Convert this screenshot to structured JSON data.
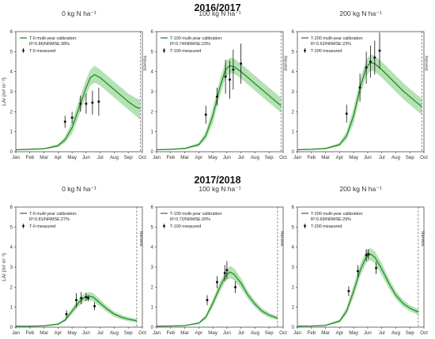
{
  "season_titles": [
    "2016/2017",
    "2017/2018"
  ],
  "harvest_label": "Harvest",
  "colors": {
    "model_line": "#2a8a2a",
    "band": "#9bd89b",
    "measured": "#111111",
    "harvest_line": "#555555"
  },
  "chart_data": [
    {
      "type": "line",
      "season": "2016/2017",
      "title": "0 kg N ha⁻¹",
      "ylabel": "LAI (m² m⁻²)",
      "xticks": [
        "Jan",
        "Feb",
        "Mar",
        "Apr",
        "May",
        "Jun",
        "Jul",
        "Aug",
        "Sep",
        "Oct"
      ],
      "ylim": [
        0,
        6
      ],
      "yticks": [
        "0",
        "1",
        "2",
        "3",
        "4",
        "5",
        "6"
      ],
      "harvest_month": 8.85,
      "legend": {
        "model": "T-0 multi-year calibration:",
        "model_stats": "R²:0.86/NRMSE:38%",
        "measured": "T-0 measured"
      },
      "model": {
        "x": [
          0,
          1,
          2,
          3,
          3.5,
          4,
          4.5,
          5,
          5.3,
          5.6,
          6,
          6.5,
          7,
          7.5,
          8,
          8.5,
          8.85
        ],
        "y": [
          0.1,
          0.12,
          0.15,
          0.3,
          0.6,
          1.2,
          2.2,
          3.2,
          3.7,
          3.85,
          3.7,
          3.4,
          3.1,
          2.8,
          2.5,
          2.25,
          2.15
        ]
      },
      "band": {
        "x": [
          0,
          1,
          2,
          3,
          3.5,
          4,
          4.5,
          5,
          5.3,
          5.6,
          6,
          6.5,
          7,
          7.5,
          8,
          8.5,
          8.85
        ],
        "lower": [
          0.08,
          0.1,
          0.12,
          0.22,
          0.45,
          0.9,
          1.8,
          2.8,
          3.3,
          3.45,
          3.3,
          3.0,
          2.7,
          2.4,
          2.1,
          1.8,
          1.6
        ],
        "upper": [
          0.12,
          0.14,
          0.18,
          0.38,
          0.75,
          1.5,
          2.6,
          3.6,
          4.1,
          4.3,
          4.1,
          3.8,
          3.5,
          3.2,
          2.9,
          2.7,
          2.6
        ]
      },
      "measured": [
        {
          "x": 3.5,
          "y": 1.5,
          "err": 0.3
        },
        {
          "x": 4.0,
          "y": 1.7,
          "err": 0.3
        },
        {
          "x": 4.6,
          "y": 2.4,
          "err": 0.4
        },
        {
          "x": 5.0,
          "y": 2.4,
          "err": 0.5
        },
        {
          "x": 5.45,
          "y": 2.45,
          "err": 0.6
        },
        {
          "x": 5.9,
          "y": 2.5,
          "err": 0.7
        }
      ]
    },
    {
      "type": "line",
      "season": "2016/2017",
      "title": "100 kg N ha⁻¹",
      "ylabel": "",
      "xticks": [
        "Jan",
        "Feb",
        "Mar",
        "Apr",
        "May",
        "Jun",
        "Jul",
        "Aug",
        "Sep",
        "Oct"
      ],
      "ylim": [
        0,
        6
      ],
      "yticks": [
        "0",
        "1",
        "2",
        "3",
        "4",
        "5",
        "6"
      ],
      "harvest_month": 8.85,
      "legend": {
        "model": "T-100 multi-year calibration:",
        "model_stats": "R²:0.74/NRMSE:23%",
        "measured": "T-100 measured"
      },
      "model": {
        "x": [
          0,
          1,
          2,
          3,
          3.5,
          4,
          4.5,
          4.9,
          5.2,
          5.5,
          6,
          6.5,
          7,
          7.5,
          8,
          8.5,
          8.85
        ],
        "y": [
          0.1,
          0.12,
          0.16,
          0.35,
          0.8,
          1.8,
          3.2,
          4.1,
          4.3,
          4.25,
          4.0,
          3.7,
          3.4,
          3.1,
          2.8,
          2.5,
          2.3
        ]
      },
      "band": {
        "x": [
          0,
          1,
          2,
          3,
          3.5,
          4,
          4.5,
          4.9,
          5.2,
          5.5,
          6,
          6.5,
          7,
          7.5,
          8,
          8.5,
          8.85
        ],
        "lower": [
          0.08,
          0.1,
          0.13,
          0.27,
          0.6,
          1.4,
          2.8,
          3.7,
          3.9,
          3.9,
          3.65,
          3.35,
          3.05,
          2.75,
          2.45,
          2.15,
          1.95
        ],
        "upper": [
          0.12,
          0.14,
          0.2,
          0.45,
          1.0,
          2.2,
          3.6,
          4.5,
          4.7,
          4.65,
          4.4,
          4.1,
          3.8,
          3.5,
          3.2,
          2.9,
          2.7
        ]
      },
      "measured": [
        {
          "x": 3.5,
          "y": 1.85,
          "err": 0.45
        },
        {
          "x": 4.3,
          "y": 2.75,
          "err": 0.45
        },
        {
          "x": 4.9,
          "y": 3.75,
          "err": 0.85
        },
        {
          "x": 5.2,
          "y": 3.6,
          "err": 0.95
        },
        {
          "x": 5.45,
          "y": 4.1,
          "err": 1.0
        },
        {
          "x": 6.0,
          "y": 4.4,
          "err": 1.0
        }
      ]
    },
    {
      "type": "line",
      "season": "2016/2017",
      "title": "200 kg N ha⁻¹",
      "ylabel": "",
      "xticks": [
        "Jan",
        "Feb",
        "Mar",
        "Apr",
        "May",
        "Jun",
        "Jul",
        "Aug",
        "Sep",
        "Oct"
      ],
      "ylim": [
        0,
        6
      ],
      "yticks": [
        "0",
        "1",
        "2",
        "3",
        "4",
        "5",
        "6"
      ],
      "harvest_month": 8.85,
      "legend": {
        "model": "T-200 multi-year calibration:",
        "model_stats": "R²:0.62/NRMSE:23%",
        "measured": "T-200 measured"
      },
      "model": {
        "x": [
          0,
          1,
          2,
          3,
          3.5,
          4,
          4.5,
          4.9,
          5.2,
          5.5,
          6,
          6.5,
          7,
          7.5,
          8,
          8.5,
          8.85
        ],
        "y": [
          0.1,
          0.12,
          0.16,
          0.35,
          0.8,
          1.8,
          3.3,
          4.2,
          4.45,
          4.4,
          4.1,
          3.75,
          3.4,
          3.05,
          2.75,
          2.45,
          2.25
        ]
      },
      "band": {
        "x": [
          0,
          1,
          2,
          3,
          3.5,
          4,
          4.5,
          4.9,
          5.2,
          5.5,
          6,
          6.5,
          7,
          7.5,
          8,
          8.5,
          8.85
        ],
        "lower": [
          0.08,
          0.1,
          0.13,
          0.27,
          0.6,
          1.4,
          2.9,
          3.8,
          4.05,
          4.0,
          3.7,
          3.35,
          3.0,
          2.65,
          2.35,
          2.05,
          1.85
        ],
        "upper": [
          0.12,
          0.14,
          0.2,
          0.45,
          1.0,
          2.2,
          3.7,
          4.6,
          4.85,
          4.8,
          4.5,
          4.15,
          3.8,
          3.45,
          3.15,
          2.85,
          2.65
        ]
      },
      "measured": [
        {
          "x": 3.5,
          "y": 1.9,
          "err": 0.45
        },
        {
          "x": 4.45,
          "y": 3.2,
          "err": 0.7
        },
        {
          "x": 4.9,
          "y": 4.2,
          "err": 0.8
        },
        {
          "x": 5.2,
          "y": 4.5,
          "err": 0.8
        },
        {
          "x": 5.5,
          "y": 4.7,
          "err": 0.85
        },
        {
          "x": 5.85,
          "y": 5.05,
          "err": 0.9
        }
      ]
    },
    {
      "type": "line",
      "season": "2017/2018",
      "title": "0 kg N ha⁻¹",
      "ylabel": "LAI (m² m⁻²)",
      "xticks": [
        "Jan",
        "Feb",
        "Mar",
        "Apr",
        "May",
        "Jun",
        "Jul",
        "Aug",
        "Sep",
        "Oct"
      ],
      "ylim": [
        0,
        6
      ],
      "yticks": [
        "0",
        "1",
        "2",
        "3",
        "4",
        "5",
        "6"
      ],
      "harvest_month": 8.6,
      "legend": {
        "model": "T-0 multi-year calibration:",
        "model_stats": "R²:0.81/NRMSE:27%",
        "measured": "T-0 measured"
      },
      "model": {
        "x": [
          0,
          1,
          2,
          3,
          3.5,
          4,
          4.5,
          4.9,
          5.2,
          5.5,
          6,
          6.5,
          7,
          7.5,
          8,
          8.6
        ],
        "y": [
          0.05,
          0.05,
          0.07,
          0.15,
          0.35,
          0.8,
          1.25,
          1.5,
          1.55,
          1.5,
          1.2,
          0.9,
          0.65,
          0.5,
          0.4,
          0.32
        ]
      },
      "band": {
        "x": [
          0,
          1,
          2,
          3,
          3.5,
          4,
          4.5,
          4.9,
          5.2,
          5.5,
          6,
          6.5,
          7,
          7.5,
          8,
          8.6
        ],
        "lower": [
          0.03,
          0.03,
          0.05,
          0.11,
          0.27,
          0.65,
          1.05,
          1.3,
          1.35,
          1.3,
          1.02,
          0.75,
          0.52,
          0.38,
          0.3,
          0.23
        ],
        "upper": [
          0.07,
          0.07,
          0.09,
          0.19,
          0.45,
          0.95,
          1.45,
          1.7,
          1.75,
          1.7,
          1.38,
          1.05,
          0.78,
          0.62,
          0.5,
          0.41
        ]
      },
      "measured": [
        {
          "x": 3.6,
          "y": 0.65,
          "err": 0.2
        },
        {
          "x": 4.3,
          "y": 1.35,
          "err": 0.35
        },
        {
          "x": 4.65,
          "y": 1.45,
          "err": 0.3
        },
        {
          "x": 5.0,
          "y": 1.5,
          "err": 0.2
        },
        {
          "x": 5.15,
          "y": 1.45,
          "err": 0.15
        },
        {
          "x": 5.6,
          "y": 1.05,
          "err": 0.2
        }
      ]
    },
    {
      "type": "line",
      "season": "2017/2018",
      "title": "100 kg N ha⁻¹",
      "ylabel": "",
      "xticks": [
        "Jan",
        "Feb",
        "Mar",
        "Apr",
        "May",
        "Jun",
        "Jul",
        "Aug",
        "Sep",
        "Oct"
      ],
      "ylim": [
        0,
        6
      ],
      "yticks": [
        "0",
        "1",
        "2",
        "3",
        "4",
        "5",
        "6"
      ],
      "harvest_month": 8.6,
      "legend": {
        "model": "T-100 multi-year calibration:",
        "model_stats": "R²:0.72/NRMSE:20%",
        "measured": "T-100 measured"
      },
      "model": {
        "x": [
          0,
          1,
          2,
          3,
          3.5,
          4,
          4.5,
          4.9,
          5.2,
          5.5,
          6,
          6.5,
          7,
          7.5,
          8,
          8.6
        ],
        "y": [
          0.05,
          0.06,
          0.08,
          0.2,
          0.5,
          1.2,
          2.0,
          2.55,
          2.75,
          2.65,
          2.2,
          1.6,
          1.15,
          0.8,
          0.6,
          0.45
        ]
      },
      "band": {
        "x": [
          0,
          1,
          2,
          3,
          3.5,
          4,
          4.5,
          4.9,
          5.2,
          5.5,
          6,
          6.5,
          7,
          7.5,
          8,
          8.6
        ],
        "lower": [
          0.03,
          0.04,
          0.06,
          0.15,
          0.4,
          1.0,
          1.75,
          2.3,
          2.45,
          2.35,
          1.95,
          1.4,
          0.98,
          0.66,
          0.48,
          0.35
        ],
        "upper": [
          0.07,
          0.08,
          0.1,
          0.25,
          0.6,
          1.4,
          2.25,
          2.8,
          3.05,
          2.95,
          2.45,
          1.8,
          1.32,
          0.94,
          0.72,
          0.55
        ]
      },
      "measured": [
        {
          "x": 3.6,
          "y": 1.35,
          "err": 0.25
        },
        {
          "x": 4.3,
          "y": 2.25,
          "err": 0.3
        },
        {
          "x": 4.85,
          "y": 2.7,
          "err": 0.4
        },
        {
          "x": 5.0,
          "y": 2.85,
          "err": 0.45
        },
        {
          "x": 5.6,
          "y": 2.0,
          "err": 0.3
        }
      ]
    },
    {
      "type": "line",
      "season": "2017/2018",
      "title": "200 kg N ha⁻¹",
      "ylabel": "",
      "xticks": [
        "Jan",
        "Feb",
        "Mar",
        "Apr",
        "May",
        "Jun",
        "Jul",
        "Aug",
        "Sep",
        "Oct"
      ],
      "ylim": [
        0,
        6
      ],
      "yticks": [
        "0",
        "1",
        "2",
        "3",
        "4",
        "5",
        "6"
      ],
      "harvest_month": 8.6,
      "legend": {
        "model": "T-200 multi-year calibration:",
        "model_stats": "R²:0.69/NRMSE:29%",
        "measured": "T-200 measured"
      },
      "model": {
        "x": [
          0,
          1,
          2,
          3,
          3.5,
          4,
          4.5,
          4.9,
          5.2,
          5.5,
          6,
          6.5,
          7,
          7.5,
          8,
          8.6
        ],
        "y": [
          0.05,
          0.06,
          0.09,
          0.3,
          0.8,
          1.8,
          2.9,
          3.5,
          3.65,
          3.5,
          2.9,
          2.2,
          1.6,
          1.2,
          0.95,
          0.75
        ]
      },
      "band": {
        "x": [
          0,
          1,
          2,
          3,
          3.5,
          4,
          4.5,
          4.9,
          5.2,
          5.5,
          6,
          6.5,
          7,
          7.5,
          8,
          8.6
        ],
        "lower": [
          0.03,
          0.04,
          0.06,
          0.22,
          0.62,
          1.5,
          2.6,
          3.2,
          3.35,
          3.2,
          2.6,
          1.95,
          1.4,
          1.02,
          0.8,
          0.6
        ],
        "upper": [
          0.07,
          0.08,
          0.12,
          0.38,
          0.98,
          2.1,
          3.2,
          3.8,
          3.95,
          3.8,
          3.2,
          2.45,
          1.8,
          1.38,
          1.1,
          0.9
        ]
      },
      "measured": [
        {
          "x": 3.65,
          "y": 1.8,
          "err": 0.25
        },
        {
          "x": 4.3,
          "y": 2.8,
          "err": 0.3
        },
        {
          "x": 4.9,
          "y": 3.6,
          "err": 0.3
        },
        {
          "x": 5.05,
          "y": 3.65,
          "err": 0.25
        },
        {
          "x": 5.6,
          "y": 2.95,
          "err": 0.3
        }
      ]
    }
  ]
}
